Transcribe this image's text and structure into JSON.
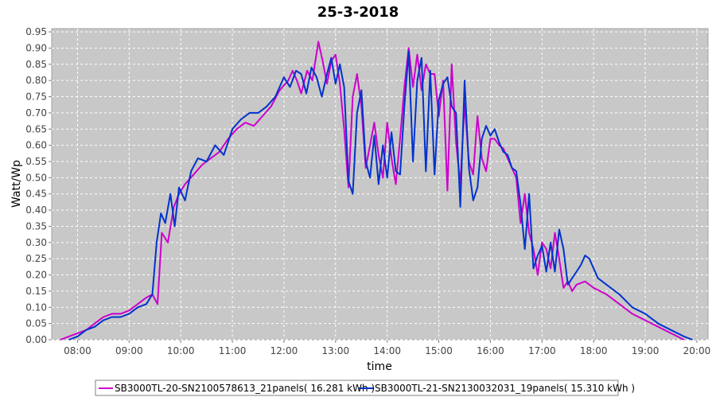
{
  "chart_data": {
    "type": "line",
    "title": "25-3-2018",
    "xlabel": "time",
    "ylabel": "Watt/Wp",
    "xlim": [
      "07:30",
      "20:13"
    ],
    "ylim": [
      0,
      0.96
    ],
    "x_ticks": [
      "08:00",
      "09:00",
      "10:00",
      "11:00",
      "12:00",
      "13:00",
      "14:00",
      "15:00",
      "16:00",
      "17:00",
      "18:00",
      "19:00",
      "20:00"
    ],
    "y_ticks": [
      "0.00",
      "0.05",
      "0.10",
      "0.15",
      "0.20",
      "0.25",
      "0.30",
      "0.35",
      "0.40",
      "0.45",
      "0.50",
      "0.55",
      "0.60",
      "0.65",
      "0.70",
      "0.75",
      "0.80",
      "0.85",
      "0.90",
      "0.95"
    ],
    "grid": true,
    "legend_position": "bottom",
    "series": [
      {
        "name": "SB3000TL-20-SN2100578613_21panels( 16.281 kWh )",
        "color": "#cc00cc",
        "points": [
          [
            "07:40",
            0.0
          ],
          [
            "07:50",
            0.01
          ],
          [
            "08:00",
            0.02
          ],
          [
            "08:10",
            0.03
          ],
          [
            "08:20",
            0.05
          ],
          [
            "08:30",
            0.07
          ],
          [
            "08:40",
            0.08
          ],
          [
            "08:50",
            0.08
          ],
          [
            "09:00",
            0.09
          ],
          [
            "09:10",
            0.11
          ],
          [
            "09:20",
            0.13
          ],
          [
            "09:27",
            0.14
          ],
          [
            "09:33",
            0.11
          ],
          [
            "09:38",
            0.33
          ],
          [
            "09:45",
            0.3
          ],
          [
            "09:52",
            0.41
          ],
          [
            "09:58",
            0.45
          ],
          [
            "10:05",
            0.48
          ],
          [
            "10:15",
            0.51
          ],
          [
            "10:25",
            0.54
          ],
          [
            "10:35",
            0.56
          ],
          [
            "10:45",
            0.58
          ],
          [
            "10:55",
            0.62
          ],
          [
            "11:05",
            0.65
          ],
          [
            "11:15",
            0.67
          ],
          [
            "11:25",
            0.66
          ],
          [
            "11:35",
            0.69
          ],
          [
            "11:45",
            0.72
          ],
          [
            "11:55",
            0.77
          ],
          [
            "12:05",
            0.8
          ],
          [
            "12:10",
            0.83
          ],
          [
            "12:15",
            0.8
          ],
          [
            "12:20",
            0.76
          ],
          [
            "12:27",
            0.83
          ],
          [
            "12:33",
            0.8
          ],
          [
            "12:40",
            0.92
          ],
          [
            "12:45",
            0.86
          ],
          [
            "12:50",
            0.79
          ],
          [
            "12:55",
            0.86
          ],
          [
            "13:00",
            0.88
          ],
          [
            "13:05",
            0.79
          ],
          [
            "13:10",
            0.65
          ],
          [
            "13:15",
            0.47
          ],
          [
            "13:20",
            0.75
          ],
          [
            "13:25",
            0.82
          ],
          [
            "13:30",
            0.72
          ],
          [
            "13:35",
            0.53
          ],
          [
            "13:40",
            0.6
          ],
          [
            "13:45",
            0.67
          ],
          [
            "13:50",
            0.57
          ],
          [
            "13:55",
            0.5
          ],
          [
            "14:00",
            0.67
          ],
          [
            "14:05",
            0.56
          ],
          [
            "14:10",
            0.48
          ],
          [
            "14:15",
            0.62
          ],
          [
            "14:20",
            0.78
          ],
          [
            "14:25",
            0.9
          ],
          [
            "14:30",
            0.78
          ],
          [
            "14:35",
            0.88
          ],
          [
            "14:40",
            0.77
          ],
          [
            "14:45",
            0.85
          ],
          [
            "14:50",
            0.82
          ],
          [
            "14:55",
            0.82
          ],
          [
            "15:00",
            0.69
          ],
          [
            "15:05",
            0.8
          ],
          [
            "15:10",
            0.46
          ],
          [
            "15:15",
            0.85
          ],
          [
            "15:20",
            0.61
          ],
          [
            "15:25",
            0.48
          ],
          [
            "15:30",
            0.73
          ],
          [
            "15:35",
            0.55
          ],
          [
            "15:40",
            0.51
          ],
          [
            "15:45",
            0.69
          ],
          [
            "15:50",
            0.56
          ],
          [
            "15:55",
            0.52
          ],
          [
            "16:00",
            0.62
          ],
          [
            "16:05",
            0.62
          ],
          [
            "16:10",
            0.6
          ],
          [
            "16:15",
            0.59
          ],
          [
            "16:20",
            0.56
          ],
          [
            "16:25",
            0.53
          ],
          [
            "16:30",
            0.5
          ],
          [
            "16:35",
            0.36
          ],
          [
            "16:40",
            0.45
          ],
          [
            "16:45",
            0.33
          ],
          [
            "16:50",
            0.28
          ],
          [
            "16:55",
            0.2
          ],
          [
            "17:00",
            0.3
          ],
          [
            "17:05",
            0.28
          ],
          [
            "17:10",
            0.22
          ],
          [
            "17:15",
            0.33
          ],
          [
            "17:20",
            0.25
          ],
          [
            "17:25",
            0.16
          ],
          [
            "17:30",
            0.18
          ],
          [
            "17:35",
            0.15
          ],
          [
            "17:40",
            0.17
          ],
          [
            "17:50",
            0.18
          ],
          [
            "18:00",
            0.16
          ],
          [
            "18:15",
            0.14
          ],
          [
            "18:30",
            0.11
          ],
          [
            "18:45",
            0.08
          ],
          [
            "19:00",
            0.06
          ],
          [
            "19:15",
            0.04
          ],
          [
            "19:30",
            0.02
          ],
          [
            "19:45",
            0.0
          ]
        ]
      },
      {
        "name": "SB3000TL-21-SN2130032031_19panels( 15.310 kWh )",
        "color": "#0033cc",
        "points": [
          [
            "07:50",
            0.0
          ],
          [
            "08:00",
            0.01
          ],
          [
            "08:10",
            0.03
          ],
          [
            "08:20",
            0.04
          ],
          [
            "08:30",
            0.06
          ],
          [
            "08:40",
            0.07
          ],
          [
            "08:50",
            0.07
          ],
          [
            "09:00",
            0.08
          ],
          [
            "09:10",
            0.1
          ],
          [
            "09:20",
            0.11
          ],
          [
            "09:27",
            0.14
          ],
          [
            "09:32",
            0.3
          ],
          [
            "09:37",
            0.39
          ],
          [
            "09:42",
            0.36
          ],
          [
            "09:48",
            0.45
          ],
          [
            "09:53",
            0.35
          ],
          [
            "09:58",
            0.47
          ],
          [
            "10:05",
            0.43
          ],
          [
            "10:12",
            0.52
          ],
          [
            "10:20",
            0.56
          ],
          [
            "10:30",
            0.55
          ],
          [
            "10:40",
            0.6
          ],
          [
            "10:50",
            0.57
          ],
          [
            "11:00",
            0.65
          ],
          [
            "11:10",
            0.68
          ],
          [
            "11:20",
            0.7
          ],
          [
            "11:30",
            0.7
          ],
          [
            "11:40",
            0.72
          ],
          [
            "11:50",
            0.75
          ],
          [
            "12:00",
            0.81
          ],
          [
            "12:07",
            0.78
          ],
          [
            "12:14",
            0.83
          ],
          [
            "12:20",
            0.82
          ],
          [
            "12:26",
            0.76
          ],
          [
            "12:32",
            0.84
          ],
          [
            "12:38",
            0.81
          ],
          [
            "12:44",
            0.75
          ],
          [
            "12:50",
            0.82
          ],
          [
            "12:55",
            0.87
          ],
          [
            "13:00",
            0.79
          ],
          [
            "13:05",
            0.85
          ],
          [
            "13:10",
            0.78
          ],
          [
            "13:15",
            0.49
          ],
          [
            "13:20",
            0.45
          ],
          [
            "13:25",
            0.7
          ],
          [
            "13:30",
            0.77
          ],
          [
            "13:35",
            0.55
          ],
          [
            "13:40",
            0.5
          ],
          [
            "13:45",
            0.63
          ],
          [
            "13:50",
            0.48
          ],
          [
            "13:55",
            0.6
          ],
          [
            "14:00",
            0.5
          ],
          [
            "14:05",
            0.64
          ],
          [
            "14:10",
            0.52
          ],
          [
            "14:15",
            0.51
          ],
          [
            "14:20",
            0.72
          ],
          [
            "14:25",
            0.89
          ],
          [
            "14:30",
            0.55
          ],
          [
            "14:35",
            0.8
          ],
          [
            "14:40",
            0.87
          ],
          [
            "14:45",
            0.52
          ],
          [
            "14:50",
            0.83
          ],
          [
            "14:55",
            0.51
          ],
          [
            "15:00",
            0.74
          ],
          [
            "15:05",
            0.79
          ],
          [
            "15:10",
            0.81
          ],
          [
            "15:15",
            0.72
          ],
          [
            "15:20",
            0.7
          ],
          [
            "15:25",
            0.41
          ],
          [
            "15:30",
            0.8
          ],
          [
            "15:35",
            0.53
          ],
          [
            "15:40",
            0.43
          ],
          [
            "15:45",
            0.47
          ],
          [
            "15:50",
            0.62
          ],
          [
            "15:55",
            0.66
          ],
          [
            "16:00",
            0.63
          ],
          [
            "16:05",
            0.65
          ],
          [
            "16:10",
            0.61
          ],
          [
            "16:15",
            0.58
          ],
          [
            "16:20",
            0.57
          ],
          [
            "16:25",
            0.53
          ],
          [
            "16:30",
            0.52
          ],
          [
            "16:35",
            0.42
          ],
          [
            "16:40",
            0.28
          ],
          [
            "16:45",
            0.45
          ],
          [
            "16:50",
            0.22
          ],
          [
            "16:55",
            0.26
          ],
          [
            "17:00",
            0.29
          ],
          [
            "17:05",
            0.21
          ],
          [
            "17:10",
            0.3
          ],
          [
            "17:15",
            0.21
          ],
          [
            "17:20",
            0.34
          ],
          [
            "17:25",
            0.28
          ],
          [
            "17:30",
            0.17
          ],
          [
            "17:35",
            0.19
          ],
          [
            "17:40",
            0.21
          ],
          [
            "17:45",
            0.23
          ],
          [
            "17:50",
            0.26
          ],
          [
            "17:55",
            0.25
          ],
          [
            "18:05",
            0.19
          ],
          [
            "18:15",
            0.17
          ],
          [
            "18:30",
            0.14
          ],
          [
            "18:45",
            0.1
          ],
          [
            "19:00",
            0.08
          ],
          [
            "19:15",
            0.05
          ],
          [
            "19:30",
            0.03
          ],
          [
            "19:45",
            0.01
          ],
          [
            "19:55",
            0.0
          ]
        ]
      }
    ]
  }
}
